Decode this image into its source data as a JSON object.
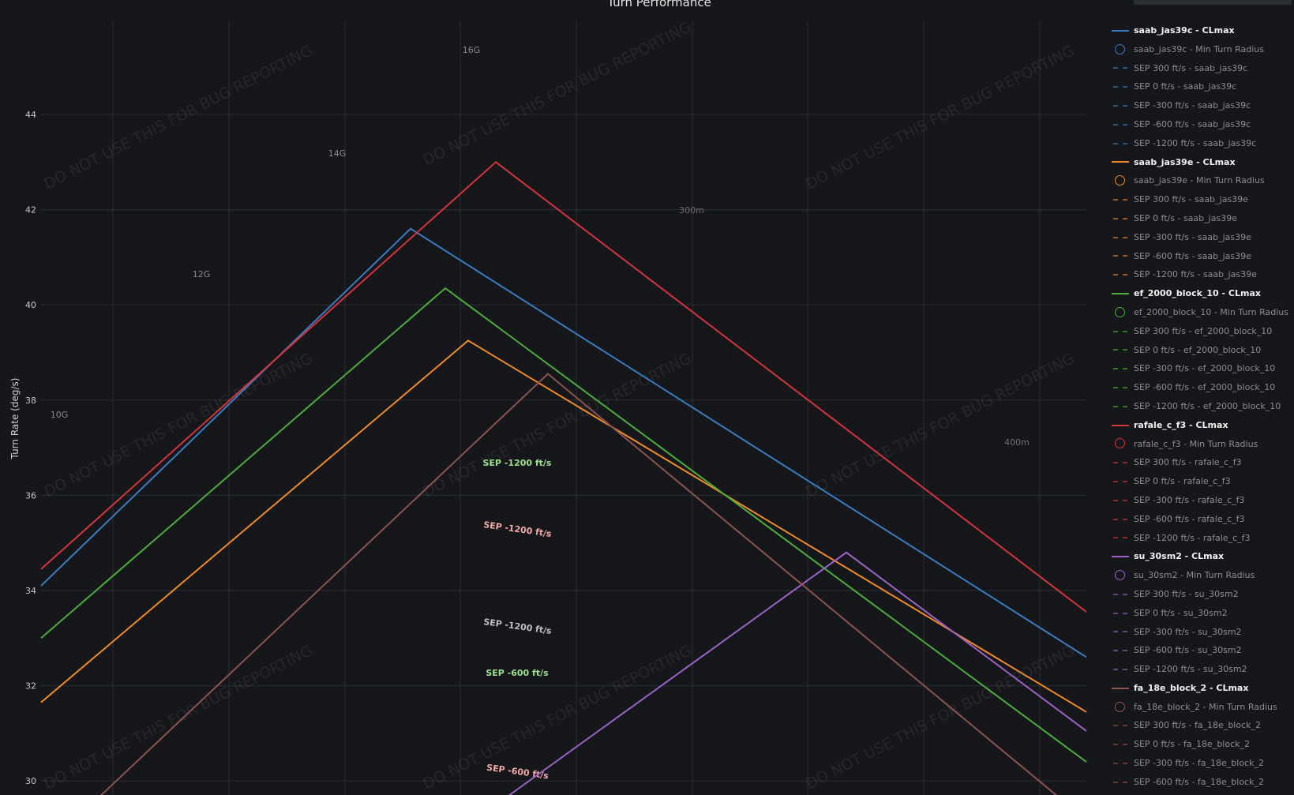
{
  "chart_data": {
    "type": "line",
    "title": "Turn Performance",
    "ylabel": "Turn Rate (deg/s)",
    "xlabel": "",
    "ylim": [
      30,
      45.5
    ],
    "y_ticks": [
      "30",
      "32",
      "34",
      "36",
      "38",
      "40",
      "42",
      "44"
    ],
    "grid": true,
    "legend_position": "right",
    "series": [
      {
        "name": "saab_jas39c - CLmax",
        "color": "#3a7cc0",
        "y": [
          34.1,
          41.6,
          32.6
        ]
      },
      {
        "name": "saab_jas39e - CLmax",
        "color": "#f08a28",
        "y": [
          31.65,
          39.25,
          31.45
        ]
      },
      {
        "name": "ef_2000_block_10 - CLmax",
        "color": "#4dad3c",
        "y": [
          33.0,
          40.35,
          30.4
        ]
      },
      {
        "name": "rafale_c_f3 - CLmax",
        "color": "#d4353a",
        "y": [
          34.45,
          43.0,
          33.55
        ]
      },
      {
        "name": "su_30sm2 - CLmax",
        "color": "#9b62c7",
        "y": [
          29.7,
          34.8,
          31.05
        ]
      },
      {
        "name": "fa_18e_block_2 - CLmax",
        "color": "#8c5450",
        "y": [
          29.7,
          38.55,
          29.7
        ]
      }
    ],
    "g_labels": [
      "16G",
      "14G",
      "12G",
      "10G"
    ],
    "radius_labels": [
      "300m",
      "400m"
    ],
    "sep_annotations": [
      {
        "text": "SEP -1200 ft/s",
        "color": "#9fe08c"
      },
      {
        "text": "SEP -1200 ft/s",
        "color": "#f0a8a8"
      },
      {
        "text": "SEP -1200 ft/s",
        "color": "#bfbfbf"
      },
      {
        "text": "SEP -600 ft/s",
        "color": "#9fe08c"
      },
      {
        "text": "SEP -600 ft/s",
        "color": "#f0a8a8"
      }
    ],
    "watermark": "DO NOT USE THIS FOR BUG REPORTING"
  },
  "legend": [
    {
      "label": "saab_jas39c - CLmax",
      "kind": "line",
      "color": "#3a7cc0"
    },
    {
      "label": "saab_jas39c - Min Turn Radius",
      "kind": "circle",
      "color": "#3a7cc0"
    },
    {
      "label": "SEP 300 ft/s - saab_jas39c",
      "kind": "dash",
      "color": "#3a7cc0"
    },
    {
      "label": "SEP 0 ft/s - saab_jas39c",
      "kind": "dash",
      "color": "#3a7cc0"
    },
    {
      "label": "SEP -300 ft/s - saab_jas39c",
      "kind": "dash",
      "color": "#3a7cc0"
    },
    {
      "label": "SEP -600 ft/s - saab_jas39c",
      "kind": "dash",
      "color": "#3a7cc0"
    },
    {
      "label": "SEP -1200 ft/s - saab_jas39c",
      "kind": "dash",
      "color": "#3a7cc0"
    },
    {
      "label": "saab_jas39e - CLmax",
      "kind": "line",
      "color": "#f08a28"
    },
    {
      "label": "saab_jas39e - Min Turn Radius",
      "kind": "circle",
      "color": "#f08a28"
    },
    {
      "label": "SEP 300 ft/s - saab_jas39e",
      "kind": "dash",
      "color": "#f08a28"
    },
    {
      "label": "SEP 0 ft/s - saab_jas39e",
      "kind": "dash",
      "color": "#f08a28"
    },
    {
      "label": "SEP -300 ft/s - saab_jas39e",
      "kind": "dash",
      "color": "#f08a28"
    },
    {
      "label": "SEP -600 ft/s - saab_jas39e",
      "kind": "dash",
      "color": "#f08a28"
    },
    {
      "label": "SEP -1200 ft/s - saab_jas39e",
      "kind": "dash",
      "color": "#f08a28"
    },
    {
      "label": "ef_2000_block_10 - CLmax",
      "kind": "line",
      "color": "#4dad3c"
    },
    {
      "label": "ef_2000_block_10 - Min Turn Radius",
      "kind": "circle",
      "color": "#4dad3c"
    },
    {
      "label": "SEP 300 ft/s - ef_2000_block_10",
      "kind": "dash",
      "color": "#4dad3c"
    },
    {
      "label": "SEP 0 ft/s - ef_2000_block_10",
      "kind": "dash",
      "color": "#4dad3c"
    },
    {
      "label": "SEP -300 ft/s - ef_2000_block_10",
      "kind": "dash",
      "color": "#4dad3c"
    },
    {
      "label": "SEP -600 ft/s - ef_2000_block_10",
      "kind": "dash",
      "color": "#4dad3c"
    },
    {
      "label": "SEP -1200 ft/s - ef_2000_block_10",
      "kind": "dash",
      "color": "#4dad3c"
    },
    {
      "label": "rafale_c_f3 - CLmax",
      "kind": "line",
      "color": "#d4353a"
    },
    {
      "label": "rafale_c_f3 - Min Turn Radius",
      "kind": "circle",
      "color": "#d4353a"
    },
    {
      "label": "SEP 300 ft/s - rafale_c_f3",
      "kind": "dash",
      "color": "#d4353a"
    },
    {
      "label": "SEP 0 ft/s - rafale_c_f3",
      "kind": "dash",
      "color": "#d4353a"
    },
    {
      "label": "SEP -300 ft/s - rafale_c_f3",
      "kind": "dash",
      "color": "#d4353a"
    },
    {
      "label": "SEP -600 ft/s - rafale_c_f3",
      "kind": "dash",
      "color": "#d4353a"
    },
    {
      "label": "SEP -1200 ft/s - rafale_c_f3",
      "kind": "dash",
      "color": "#d4353a"
    },
    {
      "label": "su_30sm2 - CLmax",
      "kind": "line",
      "color": "#9b62c7"
    },
    {
      "label": "su_30sm2 - Min Turn Radius",
      "kind": "circle",
      "color": "#9b62c7"
    },
    {
      "label": "SEP 300 ft/s - su_30sm2",
      "kind": "dash",
      "color": "#9b62c7"
    },
    {
      "label": "SEP 0 ft/s - su_30sm2",
      "kind": "dash",
      "color": "#9b62c7"
    },
    {
      "label": "SEP -300 ft/s - su_30sm2",
      "kind": "dash",
      "color": "#9b62c7"
    },
    {
      "label": "SEP -600 ft/s - su_30sm2",
      "kind": "dash",
      "color": "#9b62c7"
    },
    {
      "label": "SEP -1200 ft/s - su_30sm2",
      "kind": "dash",
      "color": "#9b62c7"
    },
    {
      "label": "fa_18e_block_2 - CLmax",
      "kind": "line",
      "color": "#8c5450"
    },
    {
      "label": "fa_18e_block_2 - Min Turn Radius",
      "kind": "circle",
      "color": "#8c5450"
    },
    {
      "label": "SEP 300 ft/s - fa_18e_block_2",
      "kind": "dash",
      "color": "#8c5450"
    },
    {
      "label": "SEP 0 ft/s - fa_18e_block_2",
      "kind": "dash",
      "color": "#8c5450"
    },
    {
      "label": "SEP -300 ft/s - fa_18e_block_2",
      "kind": "dash",
      "color": "#8c5450"
    },
    {
      "label": "SEP -600 ft/s - fa_18e_block_2",
      "kind": "dash",
      "color": "#8c5450"
    }
  ]
}
